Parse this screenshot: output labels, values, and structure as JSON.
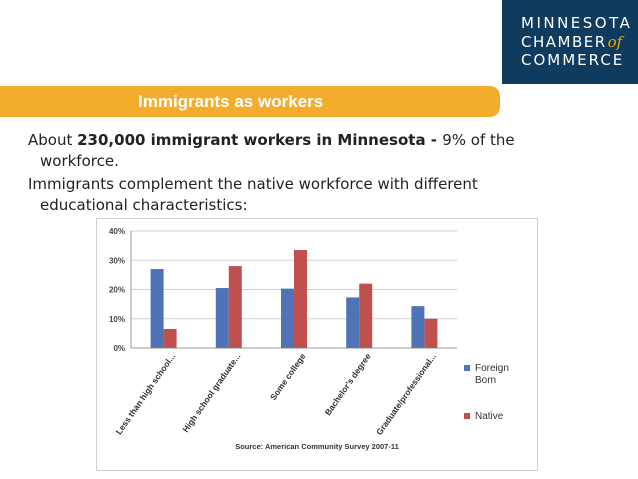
{
  "logo": {
    "line1": "MINNESOTA",
    "line2": "CHAMBER",
    "line2_of": "of",
    "line3": "COMMERCE",
    "bg_color": "#0e3b5e",
    "accent_color": "#f2a900"
  },
  "banner": {
    "title": "Immigrants as workers",
    "color": "#f4ac2c"
  },
  "text": {
    "p1_pre": "About ",
    "p1_bold": "230,000 immigrant workers in Minnesota - ",
    "p1_post": "9% of the",
    "p1_line2": "workforce.",
    "p2_line1": "Immigrants complement the native workforce with different",
    "p2_line2": "educational characteristics:"
  },
  "chart_data": {
    "type": "bar",
    "categories": [
      "Less than high school...",
      "High school graduate...",
      "Some college",
      "Bachelor's degree",
      "Graduate/professional..."
    ],
    "series": [
      {
        "name": "Foreign Born",
        "values": [
          27,
          20.5,
          20.3,
          17.3,
          14.3
        ],
        "color": "#4f73b7"
      },
      {
        "name": "Native",
        "values": [
          6.5,
          28,
          33.5,
          22,
          10
        ],
        "color": "#c0504d"
      }
    ],
    "yticks": [
      "0%",
      "10%",
      "20%",
      "30%",
      "40%"
    ],
    "ylim": [
      0,
      40
    ],
    "grid": true,
    "legend_position": "right",
    "source": "Source: American Community Survey 2007-11"
  }
}
